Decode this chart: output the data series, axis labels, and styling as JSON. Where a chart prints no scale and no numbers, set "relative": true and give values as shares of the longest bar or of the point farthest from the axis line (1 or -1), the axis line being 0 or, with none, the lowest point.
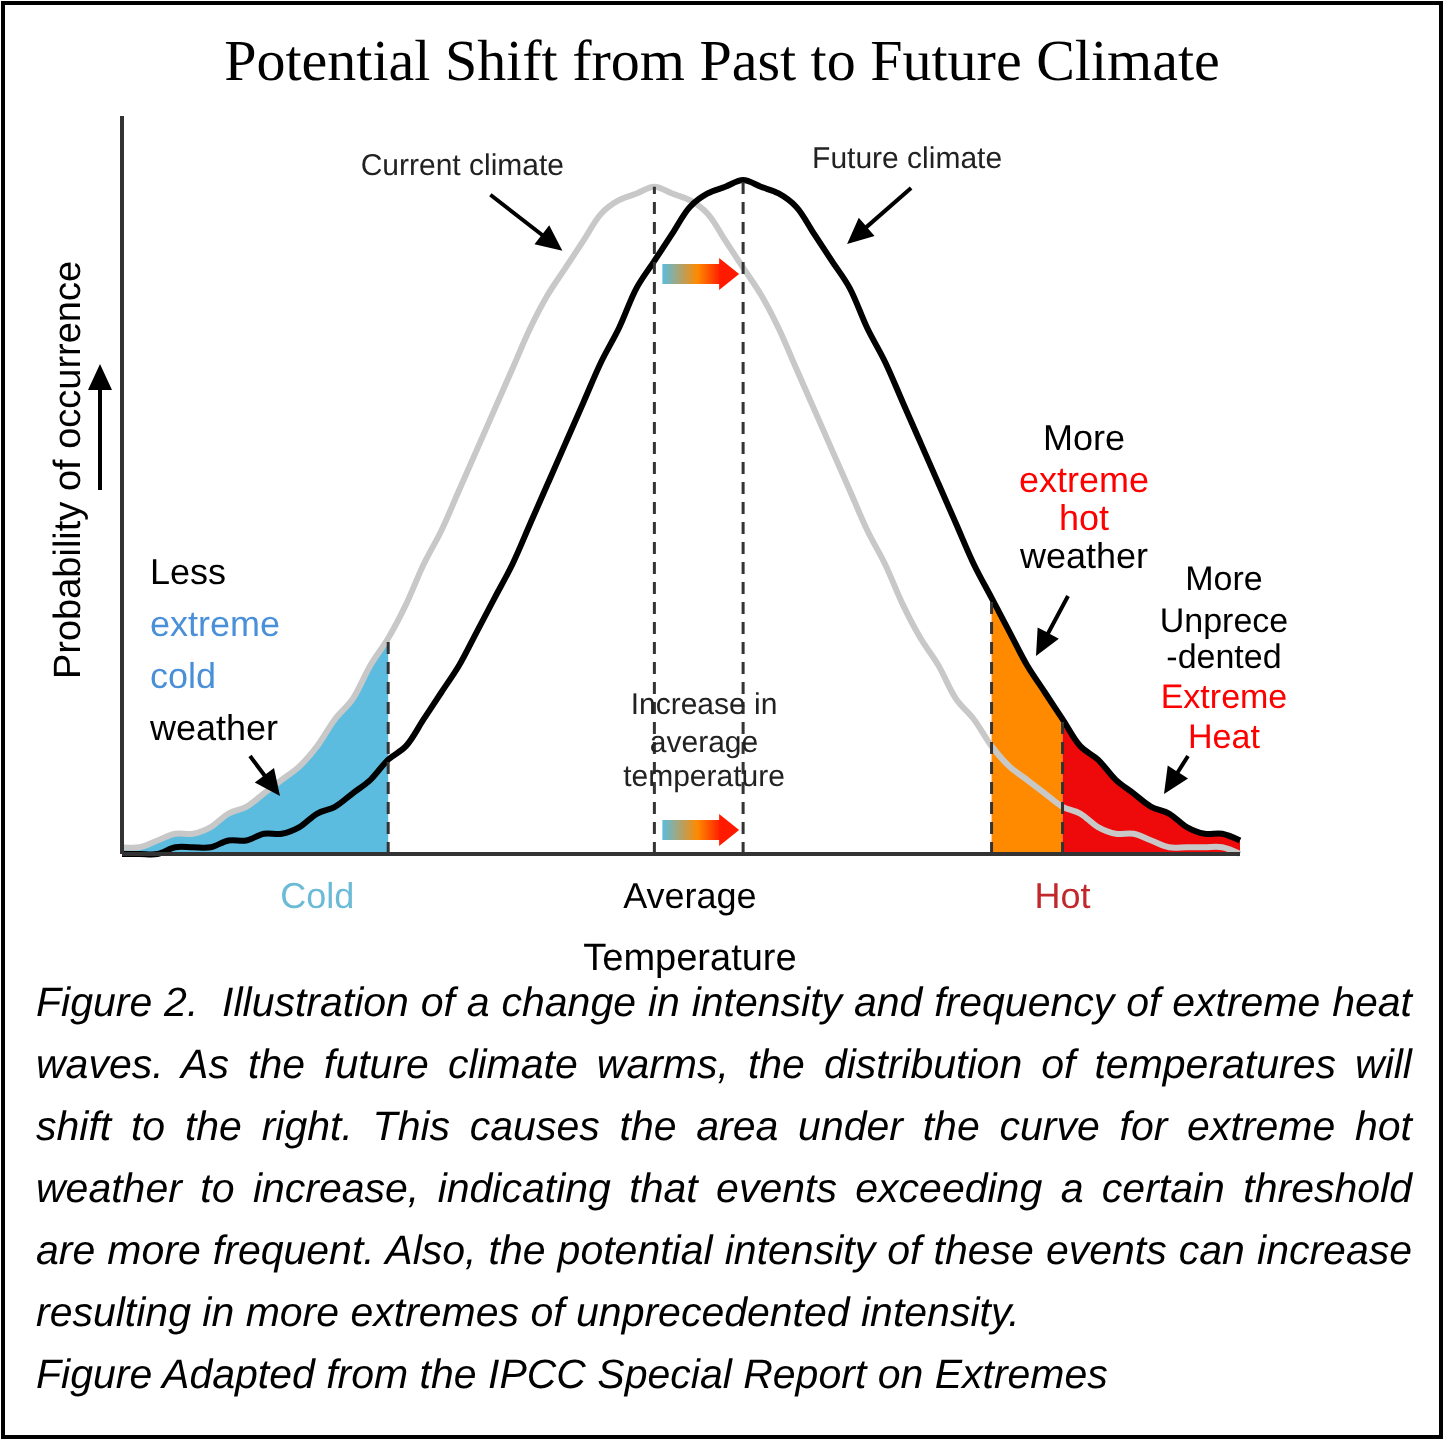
{
  "chart_data": {
    "type": "line",
    "title": "Potential Shift from Past to Future Climate",
    "xlabel": "Temperature",
    "ylabel": "Probability of occurrence",
    "relative": true,
    "categories": [
      null,
      null,
      null,
      null,
      null,
      null,
      null,
      null,
      null,
      null,
      null,
      "Cold",
      null,
      null,
      null,
      null,
      null,
      null,
      null,
      null,
      null,
      null,
      null,
      null,
      null,
      null,
      null,
      null,
      null,
      null,
      null,
      null,
      "Average",
      null,
      null,
      null,
      null,
      null,
      null,
      null,
      null,
      null,
      null,
      null,
      null,
      null,
      null,
      null,
      null,
      null,
      null,
      null,
      null,
      "Hot",
      null,
      null,
      null,
      null,
      null,
      null,
      null,
      null,
      null,
      null
    ],
    "series": [
      {
        "name": "Current climate",
        "color": "#c8c8c8",
        "values": [
          0.01,
          0.01,
          0.02,
          0.03,
          0.03,
          0.04,
          0.06,
          0.07,
          0.09,
          0.11,
          0.13,
          0.16,
          0.2,
          0.23,
          0.28,
          0.32,
          0.37,
          0.43,
          0.48,
          0.54,
          0.6,
          0.66,
          0.72,
          0.78,
          0.83,
          0.87,
          0.91,
          0.95,
          0.97,
          0.98,
          0.99,
          0.98,
          0.97,
          0.95,
          0.91,
          0.87,
          0.83,
          0.78,
          0.72,
          0.66,
          0.6,
          0.54,
          0.48,
          0.43,
          0.37,
          0.32,
          0.28,
          0.23,
          0.2,
          0.16,
          0.13,
          0.11,
          0.09,
          0.07,
          0.06,
          0.04,
          0.03,
          0.03,
          0.02,
          0.01,
          0.01,
          0.01,
          0.01,
          0
        ]
      },
      {
        "type": "area",
        "color": "#5bbcdf",
        "values": [
          0.01,
          0.01,
          0.02,
          0.03,
          0.03,
          0.04,
          0.06,
          0.07,
          0.09,
          0.11,
          0.13,
          0.16,
          0.2,
          0.23,
          0.28,
          0.32,
          null,
          null,
          null,
          null,
          null,
          null,
          null,
          null,
          null,
          null,
          null,
          null,
          null,
          null,
          null,
          null,
          null,
          null,
          null,
          null,
          null,
          null,
          null,
          null,
          null,
          null,
          null,
          null,
          null,
          null,
          null,
          null,
          null,
          null,
          null,
          null,
          null,
          null,
          null,
          null,
          null,
          null,
          null,
          null,
          null,
          null,
          null,
          null
        ]
      },
      {
        "type": "area",
        "color": "#ff8a00",
        "values": [
          null,
          null,
          null,
          null,
          null,
          null,
          null,
          null,
          null,
          null,
          null,
          null,
          null,
          null,
          null,
          null,
          null,
          null,
          null,
          null,
          null,
          null,
          null,
          null,
          null,
          null,
          null,
          null,
          null,
          null,
          null,
          null,
          null,
          null,
          null,
          null,
          null,
          null,
          null,
          null,
          null,
          null,
          null,
          null,
          null,
          null,
          null,
          null,
          null,
          0.38,
          0.33,
          0.28,
          0.24,
          0.2,
          null,
          null,
          null,
          null,
          null,
          null,
          null,
          null,
          null,
          null
        ]
      },
      {
        "type": "area",
        "color": "#ee0a0a",
        "values": [
          null,
          null,
          null,
          null,
          null,
          null,
          null,
          null,
          null,
          null,
          null,
          null,
          null,
          null,
          null,
          null,
          null,
          null,
          null,
          null,
          null,
          null,
          null,
          null,
          null,
          null,
          null,
          null,
          null,
          null,
          null,
          null,
          null,
          null,
          null,
          null,
          null,
          null,
          null,
          null,
          null,
          null,
          null,
          null,
          null,
          null,
          null,
          null,
          null,
          null,
          null,
          null,
          null,
          0.2,
          0.16,
          0.14,
          0.11,
          0.09,
          0.07,
          0.06,
          0.04,
          0.03,
          0.03,
          0.02
        ]
      },
      {
        "name": "Future climate",
        "color": "#000000",
        "values": [
          0,
          0,
          0,
          0.01,
          0.01,
          0.01,
          0.02,
          0.02,
          0.03,
          0.03,
          0.04,
          0.06,
          0.07,
          0.09,
          0.11,
          0.14,
          0.16,
          0.2,
          0.24,
          0.28,
          0.33,
          0.38,
          0.43,
          0.49,
          0.55,
          0.61,
          0.67,
          0.73,
          0.78,
          0.84,
          0.88,
          0.92,
          0.96,
          0.98,
          0.99,
          1,
          0.99,
          0.98,
          0.96,
          0.92,
          0.88,
          0.84,
          0.78,
          0.73,
          0.67,
          0.61,
          0.55,
          0.49,
          0.43,
          0.38,
          0.33,
          0.28,
          0.24,
          0.2,
          0.16,
          0.14,
          0.11,
          0.09,
          0.07,
          0.06,
          0.04,
          0.03,
          0.03,
          0.02
        ]
      }
    ],
    "annotations": [
      "Less",
      "extreme",
      "cold",
      "weather",
      "Increase in",
      "average",
      "temperature",
      "More",
      "extreme",
      "hot",
      "weather",
      "More",
      "Unprece",
      "-dented",
      "Extreme",
      "Heat",
      "Figure 2.  Illustration of a change in intensity and frequency of extreme heat waves. As the future climate warms, the distribution of temperatures will shift to the right. This causes the area under the curve for extreme hot weather to increase, indicating that events exceeding a certain threshold are more frequent. Also, the potential intensity of these events can increase resulting in more extremes of unprecedented intensity.",
      "Figure Adapted from the IPCC Special Report on Extremes"
    ]
  }
}
